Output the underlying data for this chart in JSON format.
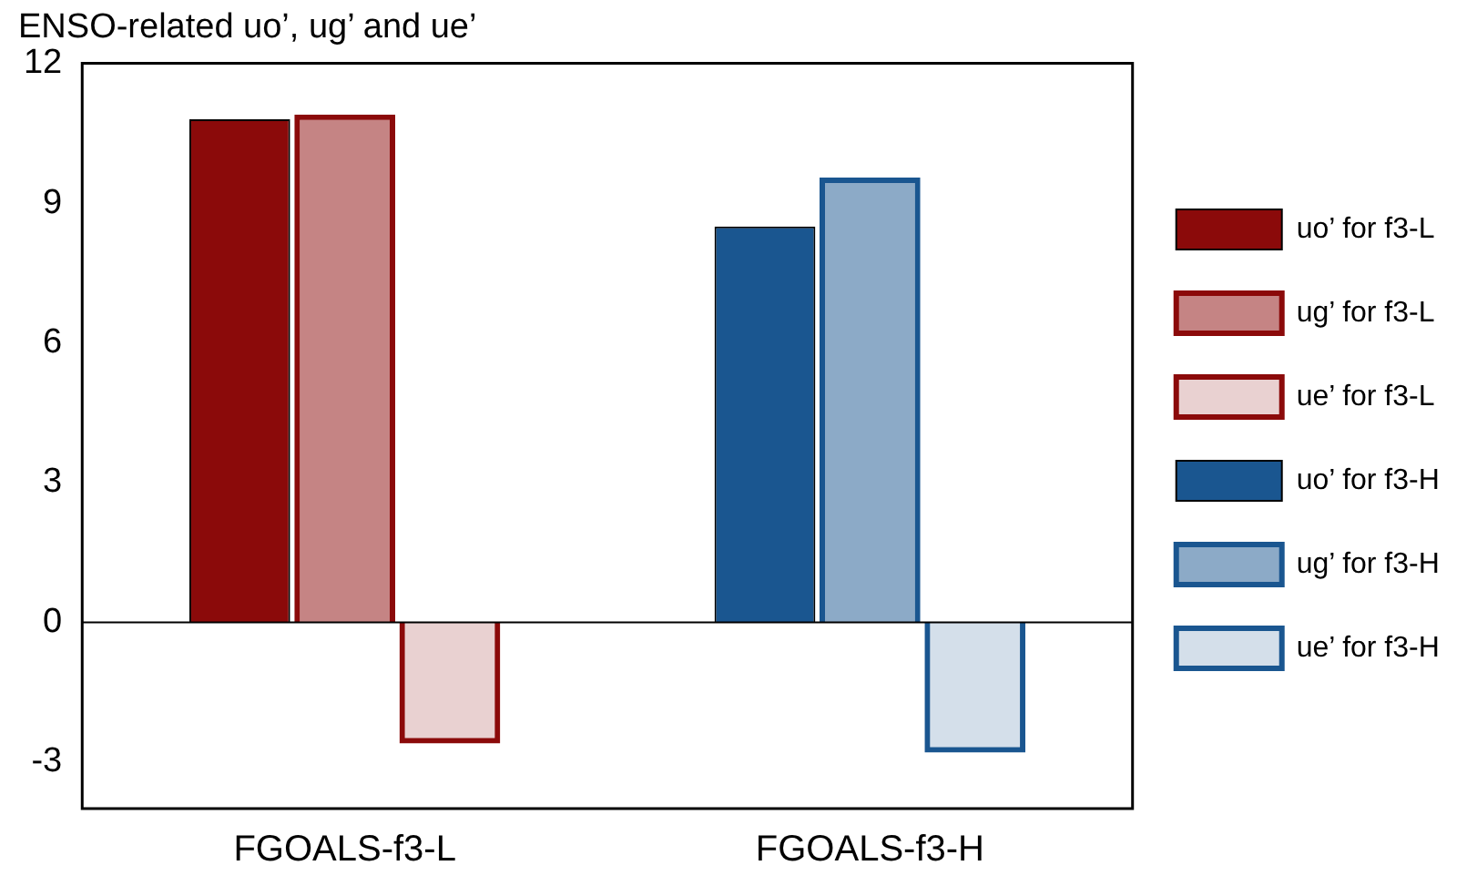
{
  "chart_data": {
    "type": "bar",
    "title": "ENSO-related uo’, ug’ and ue’",
    "categories": [
      "FGOALS-f3-L",
      "FGOALS-f3-H"
    ],
    "series": [
      {
        "name": "uo’ for f3-L",
        "color": "#8b0a0a",
        "values": [
          10.8,
          null
        ]
      },
      {
        "name": "ug’ for f3-L",
        "color": "#8b0a0a",
        "values": [
          10.9,
          null
        ]
      },
      {
        "name": "ue’ for f3-L",
        "color": "#8b0a0a",
        "values": [
          -2.6,
          null
        ]
      },
      {
        "name": "uo’ for f3-H",
        "color": "#1a5690",
        "values": [
          null,
          8.5
        ]
      },
      {
        "name": "ug’ for f3-H",
        "color": "#1a5690",
        "values": [
          null,
          9.55
        ]
      },
      {
        "name": "ue’ for f3-H",
        "color": "#1a5690",
        "values": [
          null,
          -2.8
        ]
      }
    ],
    "ylim": [
      -4,
      12
    ],
    "yticks": [
      -3,
      0,
      3,
      6,
      9,
      12
    ],
    "grid": false,
    "legend": "right",
    "ref_lines": [
      {
        "axis": "y",
        "value": 0,
        "color": "#000000"
      }
    ]
  }
}
